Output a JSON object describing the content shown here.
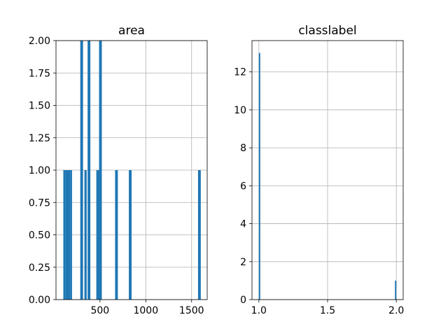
{
  "chart_data": [
    {
      "type": "bar",
      "title": "area",
      "xlabel": "",
      "ylabel": "",
      "bar_color": "#1f77b4",
      "grid": true,
      "xlim": [
        20,
        1670
      ],
      "ylim": [
        0,
        2
      ],
      "xticks": [
        500,
        1000,
        1500
      ],
      "yticks": [
        0.0,
        0.25,
        0.5,
        0.75,
        1.0,
        1.25,
        1.5,
        1.75,
        2.0
      ],
      "ytick_labels": [
        "0.00",
        "0.25",
        "0.50",
        "0.75",
        "1.00",
        "1.25",
        "1.50",
        "1.75",
        "2.00"
      ],
      "bins": [
        {
          "x0": 100,
          "x1": 125,
          "count": 1
        },
        {
          "x0": 125,
          "x1": 150,
          "count": 1
        },
        {
          "x0": 150,
          "x1": 175,
          "count": 1
        },
        {
          "x0": 175,
          "x1": 195,
          "count": 1
        },
        {
          "x0": 285,
          "x1": 315,
          "count": 2
        },
        {
          "x0": 330,
          "x1": 355,
          "count": 1
        },
        {
          "x0": 365,
          "x1": 395,
          "count": 2
        },
        {
          "x0": 460,
          "x1": 490,
          "count": 1
        },
        {
          "x0": 490,
          "x1": 520,
          "count": 2
        },
        {
          "x0": 665,
          "x1": 695,
          "count": 1
        },
        {
          "x0": 815,
          "x1": 845,
          "count": 1
        },
        {
          "x0": 1570,
          "x1": 1600,
          "count": 1
        }
      ]
    },
    {
      "type": "bar",
      "title": "classlabel",
      "xlabel": "",
      "ylabel": "",
      "bar_color": "#1f77b4",
      "grid": true,
      "xlim": [
        0.95,
        2.05
      ],
      "ylim": [
        0,
        13.65
      ],
      "xticks": [
        1.0,
        1.5,
        2.0
      ],
      "xtick_labels": [
        "1.0",
        "1.5",
        "2.0"
      ],
      "yticks": [
        0,
        2,
        4,
        6,
        8,
        10,
        12
      ],
      "ytick_labels": [
        "0",
        "2",
        "4",
        "6",
        "8",
        "10",
        "12"
      ],
      "bins": [
        {
          "x0": 1.0,
          "x1": 1.01,
          "count": 13
        },
        {
          "x0": 1.99,
          "x1": 2.0,
          "count": 1
        }
      ]
    }
  ]
}
